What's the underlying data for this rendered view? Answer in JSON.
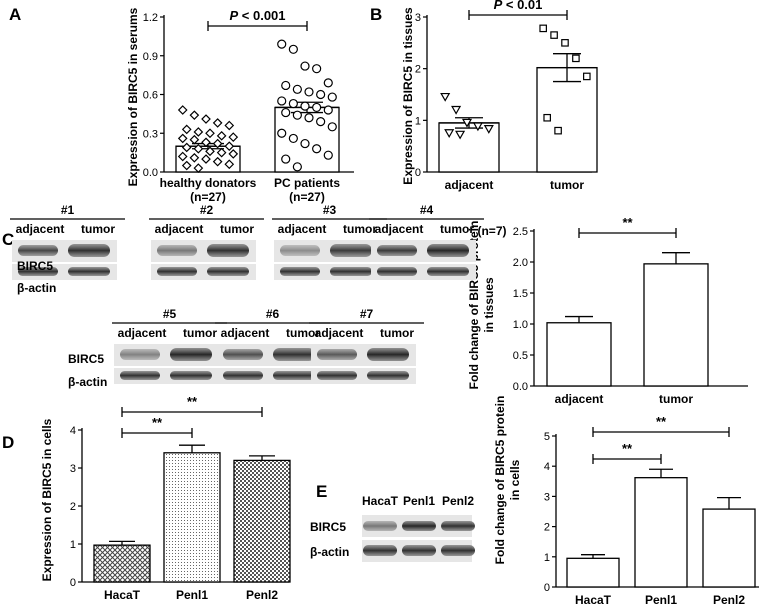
{
  "chart_data": [
    {
      "id": "A",
      "type": "scatter-bar",
      "panel_label": "A",
      "ylabel": "Expression of BIRC5 in serums",
      "yticks": [
        "0.0",
        "0.3",
        "0.6",
        "0.9",
        "1.2"
      ],
      "ylim": [
        0,
        1.2
      ],
      "categories": [
        "healthy donators (n=27)",
        "PC patients (n=27)"
      ],
      "category_lines": [
        [
          "healthy donators",
          "(n=27)"
        ],
        [
          "PC patients",
          "(n=27)"
        ]
      ],
      "means": [
        0.2,
        0.5
      ],
      "errors": [
        0.02,
        0.04
      ],
      "markers": [
        "diamond",
        "circle"
      ],
      "points": [
        [
          0.48,
          0.44,
          0.41,
          0.38,
          0.36,
          0.33,
          0.31,
          0.3,
          0.28,
          0.27,
          0.26,
          0.25,
          0.23,
          0.22,
          0.2,
          0.19,
          0.18,
          0.16,
          0.15,
          0.14,
          0.12,
          0.11,
          0.1,
          0.08,
          0.06,
          0.05,
          0.03
        ],
        [
          0.99,
          0.95,
          0.82,
          0.8,
          0.69,
          0.67,
          0.64,
          0.62,
          0.6,
          0.58,
          0.55,
          0.53,
          0.51,
          0.5,
          0.48,
          0.46,
          0.44,
          0.42,
          0.39,
          0.35,
          0.3,
          0.26,
          0.22,
          0.18,
          0.13,
          0.1,
          0.04
        ]
      ],
      "annotations": [
        {
          "text": "P < 0.001",
          "italic_prefix": "P",
          "rest": " < 0.001",
          "from": 0,
          "to": 1
        }
      ]
    },
    {
      "id": "B",
      "type": "scatter-bar",
      "panel_label": "B",
      "ylabel": "Expression of BIRC5 in tissues",
      "yticks": [
        "0",
        "1",
        "2",
        "3"
      ],
      "ylim": [
        0,
        3
      ],
      "categories": [
        "adjacent",
        "tumor"
      ],
      "footnote": "(n=7)",
      "means": [
        0.95,
        2.02
      ],
      "errors": [
        0.1,
        0.27
      ],
      "markers": [
        "triangle-down",
        "square"
      ],
      "points": [
        [
          1.45,
          1.2,
          0.95,
          0.88,
          0.83,
          0.75,
          0.72
        ],
        [
          2.78,
          2.65,
          2.5,
          2.2,
          1.85,
          1.05,
          0.8
        ]
      ],
      "annotations": [
        {
          "text": "P < 0.01",
          "italic_prefix": "P",
          "rest": " < 0.01",
          "from": 0,
          "to": 1
        }
      ]
    },
    {
      "id": "C-chart",
      "type": "bar",
      "ylabel_lines": [
        "Fold change of BIRC5 protein",
        "in tissues"
      ],
      "yticks": [
        "0.0",
        "0.5",
        "1.0",
        "1.5",
        "2.0",
        "2.5"
      ],
      "ylim": [
        0,
        2.5
      ],
      "categories": [
        "adjacent",
        "tumor"
      ],
      "values": [
        1.02,
        1.97
      ],
      "errors": [
        0.1,
        0.18
      ],
      "annotations": [
        {
          "text": "**",
          "from": 0,
          "to": 1
        }
      ]
    },
    {
      "id": "D",
      "type": "bar",
      "panel_label": "D",
      "ylabel": "Expression of BIRC5 in cells",
      "yticks": [
        "0",
        "1",
        "2",
        "3",
        "4"
      ],
      "ylim": [
        0,
        4
      ],
      "categories": [
        "HacaT",
        "Penl1",
        "Penl2"
      ],
      "values": [
        0.97,
        3.4,
        3.2
      ],
      "errors": [
        0.1,
        0.2,
        0.12
      ],
      "patterns": [
        "crosshatch",
        "dots",
        "checker"
      ],
      "annotations": [
        {
          "text": "**",
          "from": 0,
          "to": 1
        },
        {
          "text": "**",
          "from": 0,
          "to": 2
        }
      ]
    },
    {
      "id": "E-chart",
      "type": "bar",
      "ylabel_lines": [
        "Fold change of BIRC5 protein",
        "in cells"
      ],
      "yticks": [
        "0",
        "1",
        "2",
        "3",
        "4",
        "5"
      ],
      "ylim": [
        0,
        5
      ],
      "categories": [
        "HacaT",
        "Penl1",
        "Penl2"
      ],
      "values": [
        0.95,
        3.62,
        2.58
      ],
      "errors": [
        0.12,
        0.28,
        0.38
      ],
      "annotations": [
        {
          "text": "**",
          "from": 0,
          "to": 1
        },
        {
          "text": "**",
          "from": 0,
          "to": 2
        }
      ]
    }
  ],
  "blots": {
    "C": {
      "panel_label": "C",
      "samples": [
        {
          "name": "#1",
          "lanes": [
            "adjacent",
            "tumor"
          ]
        },
        {
          "name": "#2",
          "lanes": [
            "adjacent",
            "tumor"
          ]
        },
        {
          "name": "#3",
          "lanes": [
            "adjacent",
            "tumor"
          ]
        },
        {
          "name": "#4",
          "lanes": [
            "adjacent",
            "tumor"
          ]
        },
        {
          "name": "#5",
          "lanes": [
            "adjacent",
            "tumor"
          ]
        },
        {
          "name": "#6",
          "lanes": [
            "adjacent",
            "tumor"
          ]
        },
        {
          "name": "#7",
          "lanes": [
            "adjacent",
            "tumor"
          ]
        }
      ],
      "row_labels": [
        "BIRC5",
        "β-actin"
      ]
    },
    "E": {
      "panel_label": "E",
      "lanes": [
        "HacaT",
        "Penl1",
        "Penl2"
      ],
      "row_labels": [
        "BIRC5",
        "β-actin"
      ]
    }
  }
}
